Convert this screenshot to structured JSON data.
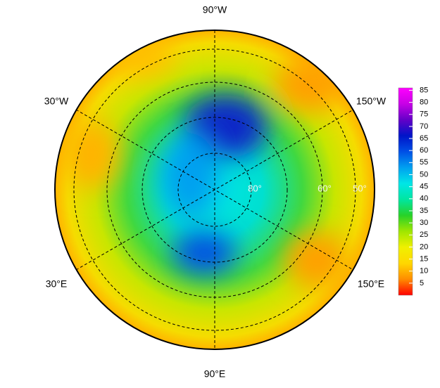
{
  "map": {
    "longitude_labels": [
      "90°W",
      "30°W",
      "150°W",
      "30°E",
      "150°E",
      "90°E"
    ],
    "latitude_labels": [
      "80°",
      "60°",
      "50°"
    ]
  },
  "colorbar": {
    "range": [
      0,
      86
    ],
    "ticks": [
      5,
      10,
      15,
      20,
      25,
      30,
      35,
      40,
      45,
      50,
      55,
      60,
      65,
      70,
      75,
      80,
      85
    ],
    "colors": [
      "#ff0000",
      "#ff8c00",
      "#ffd700",
      "#f0f000",
      "#a0e600",
      "#28d228",
      "#00e6a0",
      "#00e6e6",
      "#00a0f0",
      "#0050e6",
      "#0014c8",
      "#6400c8",
      "#c800e6",
      "#ff00ff"
    ]
  }
}
